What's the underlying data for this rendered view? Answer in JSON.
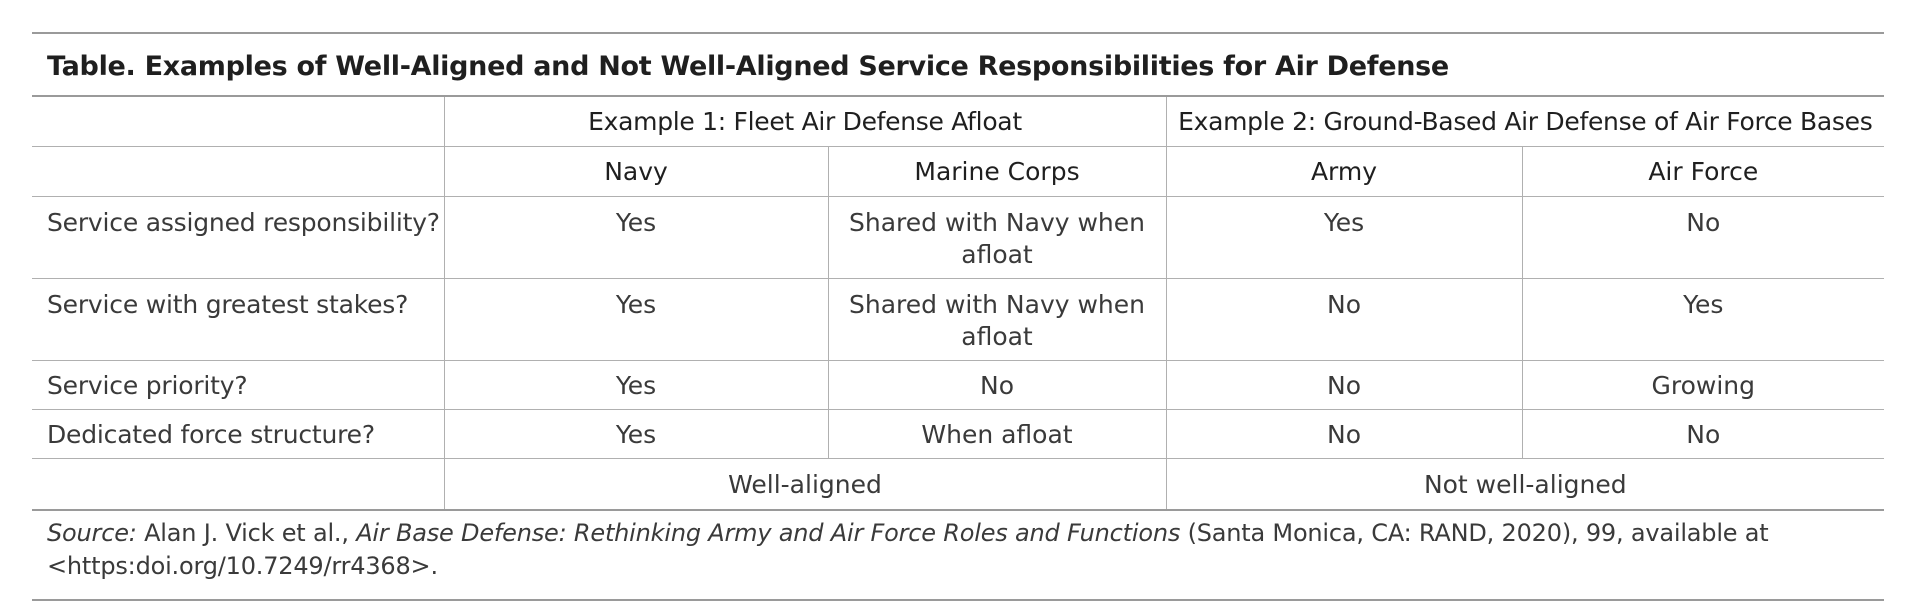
{
  "table": {
    "title": "Table. Examples of Well-Aligned and Not Well-Aligned Service Responsibilities for Air Defense",
    "groups": [
      "Example 1: Fleet Air Defense Afloat",
      "Example 2: Ground-Based Air Defense of Air Force Bases"
    ],
    "services": [
      "Navy",
      "Marine Corps",
      "Army",
      "Air Force"
    ],
    "rows": [
      {
        "label": "Service assigned responsibility?",
        "values": [
          "Yes",
          "Shared with Navy when afloat",
          "Yes",
          "No"
        ]
      },
      {
        "label": "Service with greatest stakes?",
        "values": [
          "Yes",
          "Shared with Navy when afloat",
          "No",
          "Yes"
        ]
      },
      {
        "label": "Service priority?",
        "values": [
          "Yes",
          "No",
          "No",
          "Growing"
        ]
      },
      {
        "label": "Dedicated force structure?",
        "values": [
          "Yes",
          "When afloat",
          "No",
          "No"
        ]
      }
    ],
    "summary": [
      "Well-aligned",
      "Not well-aligned"
    ],
    "source": {
      "label": "Source:",
      "authors": " Alan J. Vick et al., ",
      "work": "Air Base Defense: Rethinking Army and Air Force Roles and Functions",
      "details": " (Santa Monica, CA: RAND, 2020), 99, available at <https:doi.org/10.7249/rr4368>."
    }
  }
}
